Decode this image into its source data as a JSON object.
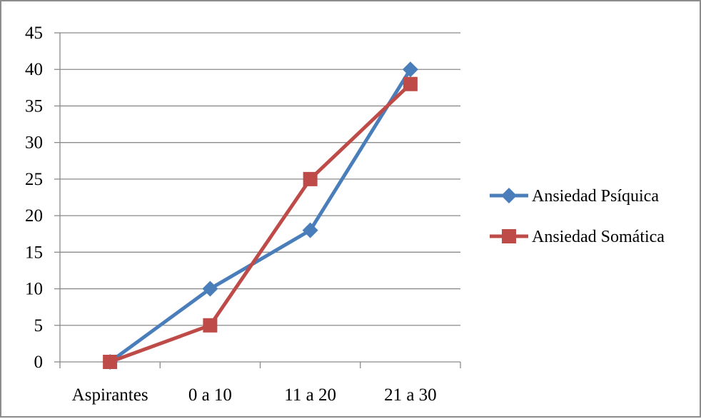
{
  "chart_data": {
    "type": "line",
    "title": "",
    "xlabel": "",
    "ylabel": "",
    "categories": [
      "Aspirantes",
      "0 a 10",
      "11 a 20",
      "21 a 30"
    ],
    "ylim": [
      0,
      45
    ],
    "yticks": [
      0,
      5,
      10,
      15,
      20,
      25,
      30,
      35,
      40,
      45
    ],
    "grid": true,
    "legend_position": "right",
    "series": [
      {
        "name": "Ansiedad Psíquica",
        "values": [
          0,
          10,
          18,
          40
        ],
        "color": "#4a7ebb",
        "marker": "diamond"
      },
      {
        "name": "Ansiedad Somática",
        "values": [
          0,
          5,
          25,
          38
        ],
        "color": "#be4b48",
        "marker": "square"
      }
    ]
  }
}
